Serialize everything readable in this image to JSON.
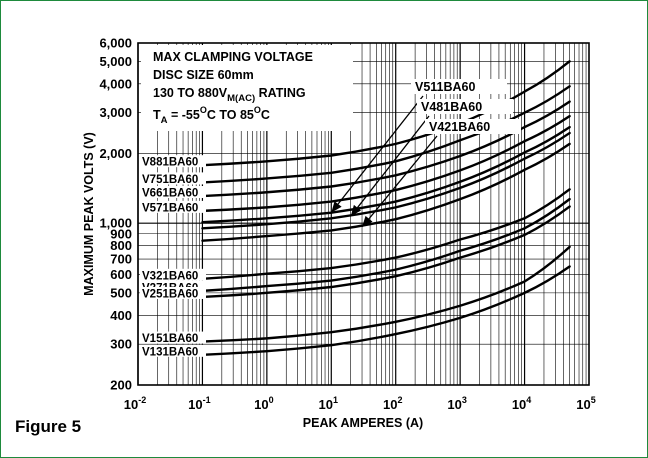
{
  "figure_caption": "Figure 5",
  "chart_data": {
    "type": "line",
    "title_lines": [
      "MAX CLAMPING VOLTAGE",
      "DISC SIZE 60mm",
      "130 TO 880V",
      "RATING",
      "T",
      "= -55",
      "C TO 85",
      "C"
    ],
    "title_parts": {
      "line1": "MAX CLAMPING VOLTAGE",
      "line2": "DISC SIZE 60mm",
      "line3_main": "130 TO 880V",
      "line3_sub": "M(AC)",
      "line3_tail": " RATING",
      "line4_t": "T",
      "line4_sub": "A",
      "line4_mid": " = -55",
      "line4_sup1": "O",
      "line4_mid2": "C TO 85",
      "line4_sup2": "O",
      "line4_tail": "C"
    },
    "xlabel": "PEAK AMPERES (A)",
    "ylabel": "MAXIMUM PEAK VOLTS (V)",
    "x_scale": "log",
    "y_scale": "log",
    "xlim": [
      0.01,
      100000
    ],
    "ylim": [
      200,
      6000
    ],
    "grid": true,
    "x_ticks": [
      {
        "base": "10",
        "exp": "-2"
      },
      {
        "base": "10",
        "exp": "-1"
      },
      {
        "base": "10",
        "exp": "0"
      },
      {
        "base": "10",
        "exp": "1"
      },
      {
        "base": "10",
        "exp": "2"
      },
      {
        "base": "10",
        "exp": "3"
      },
      {
        "base": "10",
        "exp": "4"
      },
      {
        "base": "10",
        "exp": "5"
      }
    ],
    "y_ticks": [
      {
        "value": 200,
        "label": "200"
      },
      {
        "value": 300,
        "label": "300"
      },
      {
        "value": 400,
        "label": "400"
      },
      {
        "value": 500,
        "label": "500"
      },
      {
        "value": 600,
        "label": "600"
      },
      {
        "value": 700,
        "label": "700"
      },
      {
        "value": 800,
        "label": "800"
      },
      {
        "value": 900,
        "label": "900"
      },
      {
        "value": 1000,
        "label": "1,000"
      },
      {
        "value": 2000,
        "label": "2,000"
      },
      {
        "value": 3000,
        "label": "3,000"
      },
      {
        "value": 4000,
        "label": "4,000"
      },
      {
        "value": 5000,
        "label": "5,000"
      },
      {
        "value": 6000,
        "label": "6,000"
      }
    ],
    "series": [
      {
        "name": "V881BA60",
        "x": [
          0.1,
          1,
          10,
          100,
          1000,
          10000,
          50000
        ],
        "y": [
          1780,
          1850,
          1960,
          2200,
          2700,
          3700,
          5000
        ]
      },
      {
        "name": "V751BA60",
        "x": [
          0.1,
          1,
          10,
          100,
          1000,
          10000,
          50000
        ],
        "y": [
          1500,
          1560,
          1650,
          1850,
          2280,
          3000,
          3900
        ]
      },
      {
        "name": "V661BA60",
        "x": [
          0.1,
          1,
          10,
          100,
          1000,
          10000,
          50000
        ],
        "y": [
          1310,
          1360,
          1440,
          1610,
          1950,
          2600,
          3350
        ]
      },
      {
        "name": "V571BA60",
        "x": [
          0.1,
          1,
          10,
          100,
          1000,
          10000,
          50000
        ],
        "y": [
          1130,
          1170,
          1240,
          1390,
          1690,
          2260,
          2900
        ]
      },
      {
        "name": "V511BA60",
        "x": [
          0.1,
          1,
          10,
          100,
          1000,
          10000,
          50000
        ],
        "y": [
          1010,
          1050,
          1110,
          1240,
          1510,
          2020,
          2600
        ]
      },
      {
        "name": "V481BA60",
        "x": [
          0.1,
          1,
          10,
          100,
          1000,
          10000,
          50000
        ],
        "y": [
          950,
          990,
          1050,
          1170,
          1420,
          1900,
          2450
        ]
      },
      {
        "name": "V421BA60",
        "x": [
          0.1,
          1,
          10,
          100,
          1000,
          10000,
          50000
        ],
        "y": [
          840,
          880,
          930,
          1040,
          1270,
          1700,
          2200
        ]
      },
      {
        "name": "V321BA60",
        "x": [
          0.1,
          1,
          10,
          100,
          1000,
          10000,
          50000
        ],
        "y": [
          575,
          605,
          640,
          710,
          850,
          1050,
          1400
        ]
      },
      {
        "name": "V271BA60",
        "x": [
          0.1,
          1,
          10,
          100,
          1000,
          10000,
          50000
        ],
        "y": [
          510,
          535,
          565,
          630,
          760,
          950,
          1270
        ]
      },
      {
        "name": "V251BA60",
        "x": [
          0.1,
          1,
          10,
          100,
          1000,
          10000,
          50000
        ],
        "y": [
          480,
          500,
          530,
          590,
          710,
          890,
          1180
        ]
      },
      {
        "name": "V151BA60",
        "x": [
          0.1,
          1,
          10,
          100,
          1000,
          10000,
          50000
        ],
        "y": [
          308,
          318,
          338,
          375,
          440,
          560,
          790
        ]
      },
      {
        "name": "V131BA60",
        "x": [
          0.1,
          1,
          10,
          100,
          1000,
          10000,
          50000
        ],
        "y": [
          270,
          280,
          297,
          332,
          390,
          500,
          650
        ]
      }
    ],
    "pointer_annotations": [
      {
        "label": "V511BA60",
        "target": {
          "x": 10,
          "y": 1110
        }
      },
      {
        "label": "V481BA60",
        "target": {
          "x": 20,
          "y": 1070
        }
      },
      {
        "label": "V421BA60",
        "target": {
          "x": 30,
          "y": 960
        }
      }
    ],
    "colors": {
      "border": "#1e8a3c",
      "line": "#000000",
      "grid": "#000000"
    }
  }
}
